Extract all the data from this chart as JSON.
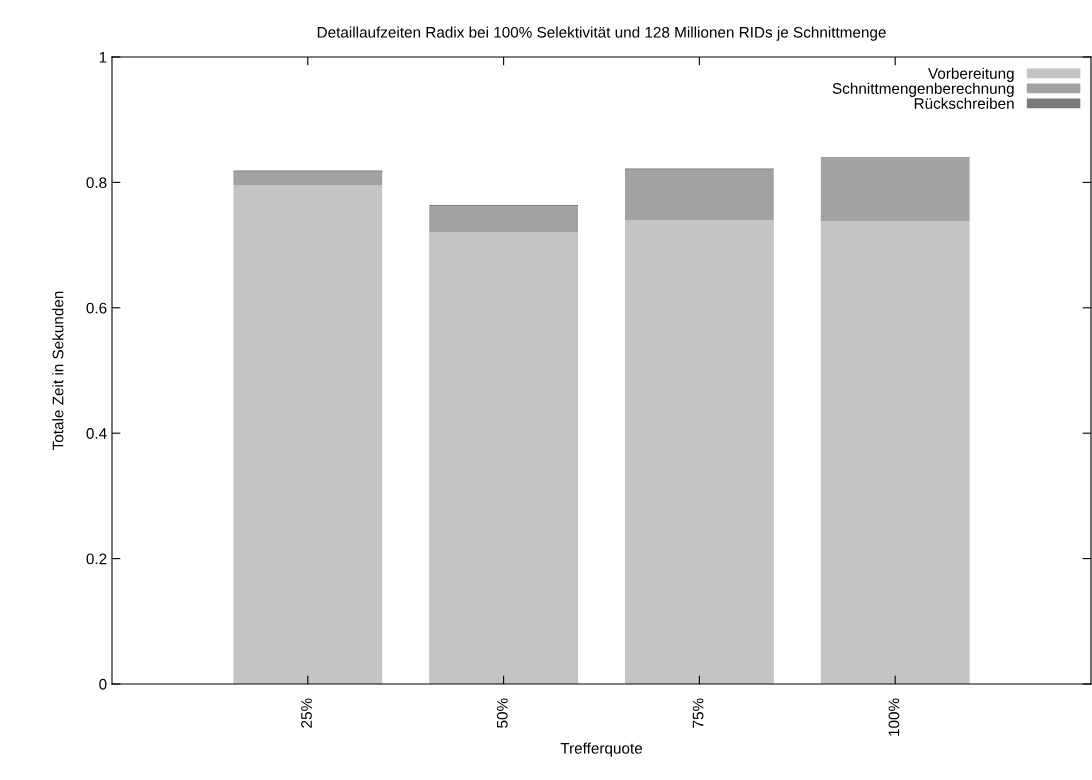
{
  "chart_data": {
    "type": "bar",
    "stacked": true,
    "title": "Detaillaufzeiten Radix bei 100% Selektivität und 128 Millionen RIDs je Schnittmenge",
    "xlabel": "Trefferquote",
    "ylabel": "Totale Zeit in Sekunden",
    "categories": [
      "25%",
      "50%",
      "75%",
      "100%"
    ],
    "series": [
      {
        "name": "Vorbereitung",
        "color": "#c4c4c4",
        "values": [
          0.796,
          0.721,
          0.74,
          0.738
        ]
      },
      {
        "name": "Schnittmengenberechnung",
        "color": "#a2a2a2",
        "values": [
          0.021,
          0.041,
          0.08,
          0.1
        ]
      },
      {
        "name": "Rückschreiben",
        "color": "#7a7a7a",
        "values": [
          0.002,
          0.002,
          0.002,
          0.002
        ]
      }
    ],
    "ylim": [
      0,
      1
    ],
    "yticks": [
      0,
      0.2,
      0.4,
      0.6,
      0.8,
      1
    ],
    "grid": false,
    "legend": "top right"
  }
}
